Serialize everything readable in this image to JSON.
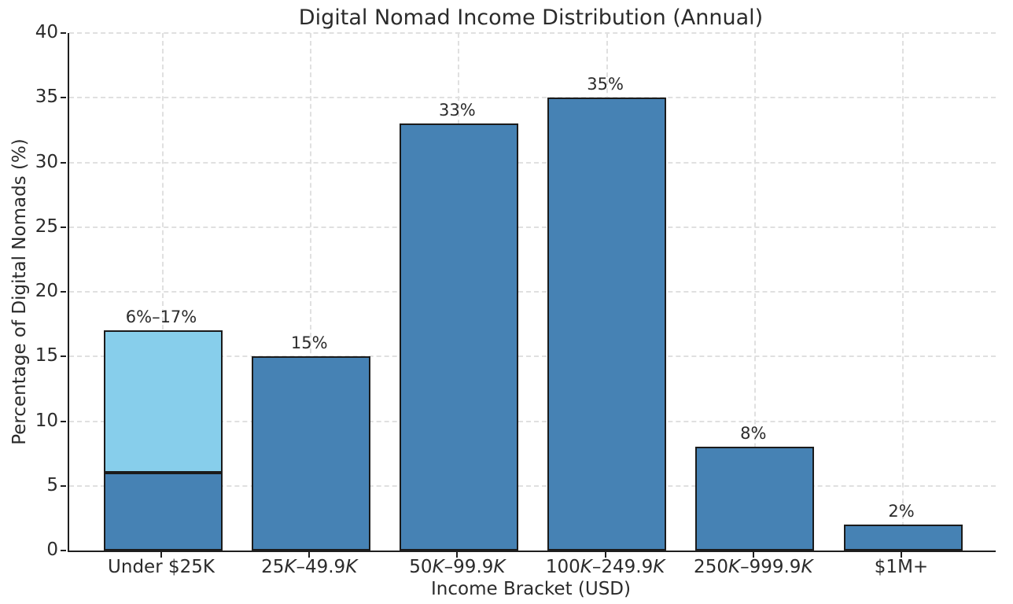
{
  "chart_data": {
    "type": "bar",
    "title": "Digital Nomad Income Distribution (Annual)",
    "xlabel": "Income Bracket (USD)",
    "ylabel": "Percentage of Digital Nomads (%)",
    "ylim": [
      0,
      40
    ],
    "yticks": [
      0,
      5,
      10,
      15,
      20,
      25,
      30,
      35,
      40
    ],
    "grid": true,
    "legend_position": "none",
    "colors": {
      "bar_primary": "#4682B4",
      "bar_range_upper": "#87CEEB",
      "bar_edge": "#1b1b1b",
      "gridline": "#e0e0e0",
      "axis": "#1f1f1f"
    },
    "categories": [
      "Under $25K",
      "25K–49.9K",
      "50K–99.9K",
      "100K–249.9K",
      "250K–999.9K",
      "$1M+"
    ],
    "bars": [
      {
        "category": "Under $25K",
        "italic_k": false,
        "label": "6%–17%",
        "type": "range",
        "segments": [
          {
            "from": 0,
            "to": 6,
            "color_key": "bar_primary"
          },
          {
            "from": 6,
            "to": 17,
            "color_key": "bar_range_upper"
          }
        ]
      },
      {
        "category": "25K–49.9K",
        "italic_k": true,
        "label": "15%",
        "value": 15
      },
      {
        "category": "50K–99.9K",
        "italic_k": true,
        "label": "33%",
        "value": 33
      },
      {
        "category": "100K–249.9K",
        "italic_k": true,
        "label": "35%",
        "value": 35
      },
      {
        "category": "250K–999.9K",
        "italic_k": true,
        "label": "8%",
        "value": 8
      },
      {
        "category": "$1M+",
        "italic_k": false,
        "label": "2%",
        "value": 2
      }
    ]
  }
}
